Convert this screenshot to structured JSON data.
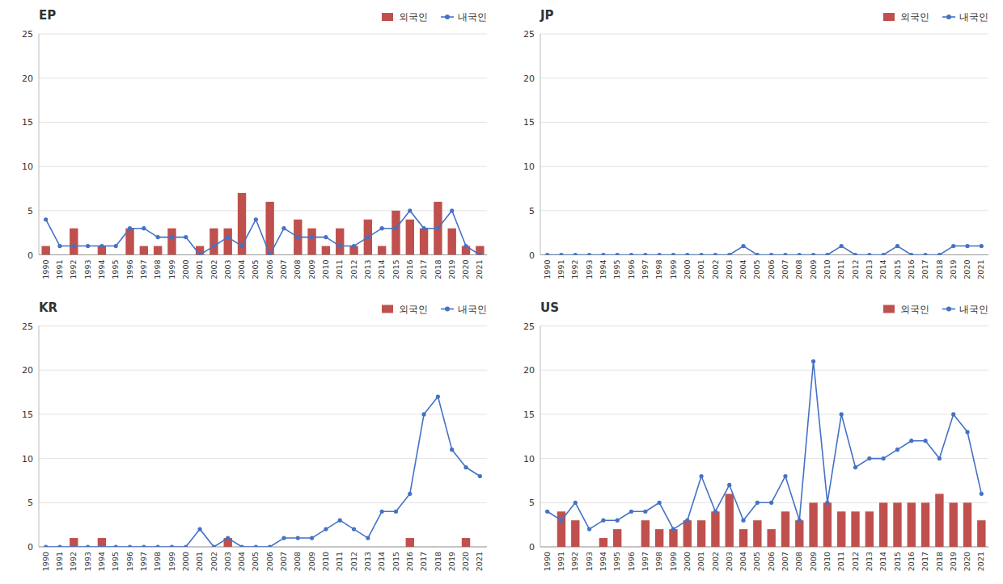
{
  "chart_data": [
    {
      "type": "bar",
      "title": "EP",
      "categories": [
        "1990",
        "1991",
        "1992",
        "1993",
        "1994",
        "1995",
        "1996",
        "1997",
        "1998",
        "1999",
        "2000",
        "2001",
        "2002",
        "2003",
        "2004",
        "2005",
        "2006",
        "2007",
        "2008",
        "2009",
        "2010",
        "2011",
        "2012",
        "2013",
        "2014",
        "2015",
        "2016",
        "2017",
        "2018",
        "2019",
        "2020",
        "2021"
      ],
      "series": [
        {
          "name": "외국인",
          "type": "bar",
          "color": "#C0504D",
          "values": [
            1,
            0,
            3,
            0,
            1,
            0,
            3,
            1,
            1,
            3,
            0,
            1,
            3,
            3,
            7,
            0,
            6,
            0,
            4,
            3,
            1,
            3,
            1,
            4,
            1,
            5,
            4,
            3,
            6,
            3,
            1,
            1
          ]
        },
        {
          "name": "내국인",
          "type": "line",
          "color": "#4472C4",
          "marker": "circle",
          "values": [
            4,
            1,
            1,
            1,
            1,
            1,
            3,
            3,
            2,
            2,
            2,
            0,
            1,
            2,
            1,
            4,
            0,
            3,
            2,
            2,
            2,
            1,
            1,
            2,
            3,
            3,
            5,
            3,
            3,
            5,
            1,
            0
          ]
        }
      ],
      "ylim": [
        0,
        25
      ],
      "yticks": [
        0,
        5,
        10,
        15,
        20,
        25
      ],
      "grid": true,
      "legend": "upper right"
    },
    {
      "type": "bar",
      "title": "JP",
      "categories": [
        "1990",
        "1991",
        "1992",
        "1993",
        "1994",
        "1995",
        "1996",
        "1997",
        "1998",
        "1999",
        "2000",
        "2001",
        "2002",
        "2003",
        "2004",
        "2005",
        "2006",
        "2007",
        "2008",
        "2009",
        "2010",
        "2011",
        "2012",
        "2013",
        "2014",
        "2015",
        "2016",
        "2017",
        "2018",
        "2019",
        "2020",
        "2021"
      ],
      "series": [
        {
          "name": "외국인",
          "type": "bar",
          "color": "#C0504D",
          "values": [
            0,
            0,
            0,
            0,
            0,
            0,
            0,
            0,
            0,
            0,
            0,
            0,
            0,
            0,
            0,
            0,
            0,
            0,
            0,
            0,
            0,
            0,
            0,
            0,
            0,
            0,
            0,
            0,
            0,
            0,
            0,
            0
          ]
        },
        {
          "name": "내국인",
          "type": "line",
          "color": "#4472C4",
          "marker": "circle",
          "values": [
            0,
            0,
            0,
            0,
            0,
            0,
            0,
            0,
            0,
            0,
            0,
            0,
            0,
            0,
            1,
            0,
            0,
            0,
            0,
            0,
            0,
            1,
            0,
            0,
            0,
            1,
            0,
            0,
            0,
            1,
            1,
            1
          ]
        }
      ],
      "ylim": [
        0,
        25
      ],
      "yticks": [
        0,
        5,
        10,
        15,
        20,
        25
      ],
      "grid": true,
      "legend": "upper right"
    },
    {
      "type": "bar",
      "title": "KR",
      "categories": [
        "1990",
        "1991",
        "1992",
        "1993",
        "1994",
        "1995",
        "1996",
        "1997",
        "1998",
        "1999",
        "2000",
        "2001",
        "2002",
        "2003",
        "2004",
        "2005",
        "2006",
        "2007",
        "2008",
        "2009",
        "2010",
        "2011",
        "2012",
        "2013",
        "2014",
        "2015",
        "2016",
        "2017",
        "2018",
        "2019",
        "2020",
        "2021"
      ],
      "series": [
        {
          "name": "외국인",
          "type": "bar",
          "color": "#C0504D",
          "values": [
            0,
            0,
            1,
            0,
            1,
            0,
            0,
            0,
            0,
            0,
            0,
            0,
            0,
            1,
            0,
            0,
            0,
            0,
            0,
            0,
            0,
            0,
            0,
            0,
            0,
            0,
            1,
            0,
            0,
            0,
            1,
            0
          ]
        },
        {
          "name": "내국인",
          "type": "line",
          "color": "#4472C4",
          "marker": "circle",
          "values": [
            0,
            0,
            0,
            0,
            0,
            0,
            0,
            0,
            0,
            0,
            0,
            2,
            0,
            1,
            0,
            0,
            0,
            1,
            1,
            1,
            2,
            3,
            2,
            1,
            4,
            4,
            6,
            15,
            17,
            11,
            9,
            8
          ]
        }
      ],
      "ylim": [
        0,
        25
      ],
      "yticks": [
        0,
        5,
        10,
        15,
        20,
        25
      ],
      "grid": true,
      "legend": "upper right"
    },
    {
      "type": "bar",
      "title": "US",
      "categories": [
        "1990",
        "1991",
        "1992",
        "1993",
        "1994",
        "1995",
        "1996",
        "1997",
        "1998",
        "1999",
        "2000",
        "2001",
        "2002",
        "2003",
        "2004",
        "2005",
        "2006",
        "2007",
        "2008",
        "2009",
        "2010",
        "2011",
        "2012",
        "2013",
        "2014",
        "2015",
        "2016",
        "2017",
        "2018",
        "2019",
        "2020",
        "2021"
      ],
      "series": [
        {
          "name": "외국인",
          "type": "bar",
          "color": "#C0504D",
          "values": [
            0,
            4,
            3,
            0,
            1,
            2,
            0,
            3,
            2,
            2,
            3,
            3,
            4,
            6,
            2,
            3,
            2,
            4,
            3,
            5,
            5,
            4,
            4,
            4,
            5,
            5,
            5,
            5,
            6,
            5,
            5,
            3
          ]
        },
        {
          "name": "내국인",
          "type": "line",
          "color": "#4472C4",
          "marker": "circle",
          "values": [
            4,
            3,
            5,
            2,
            3,
            3,
            4,
            4,
            5,
            2,
            3,
            8,
            4,
            7,
            3,
            5,
            5,
            8,
            3,
            21,
            5,
            15,
            9,
            10,
            10,
            11,
            12,
            12,
            10,
            15,
            13,
            6
          ]
        }
      ],
      "ylim": [
        0,
        25
      ],
      "yticks": [
        0,
        5,
        10,
        15,
        20,
        25
      ],
      "grid": true,
      "legend": "upper right"
    }
  ]
}
